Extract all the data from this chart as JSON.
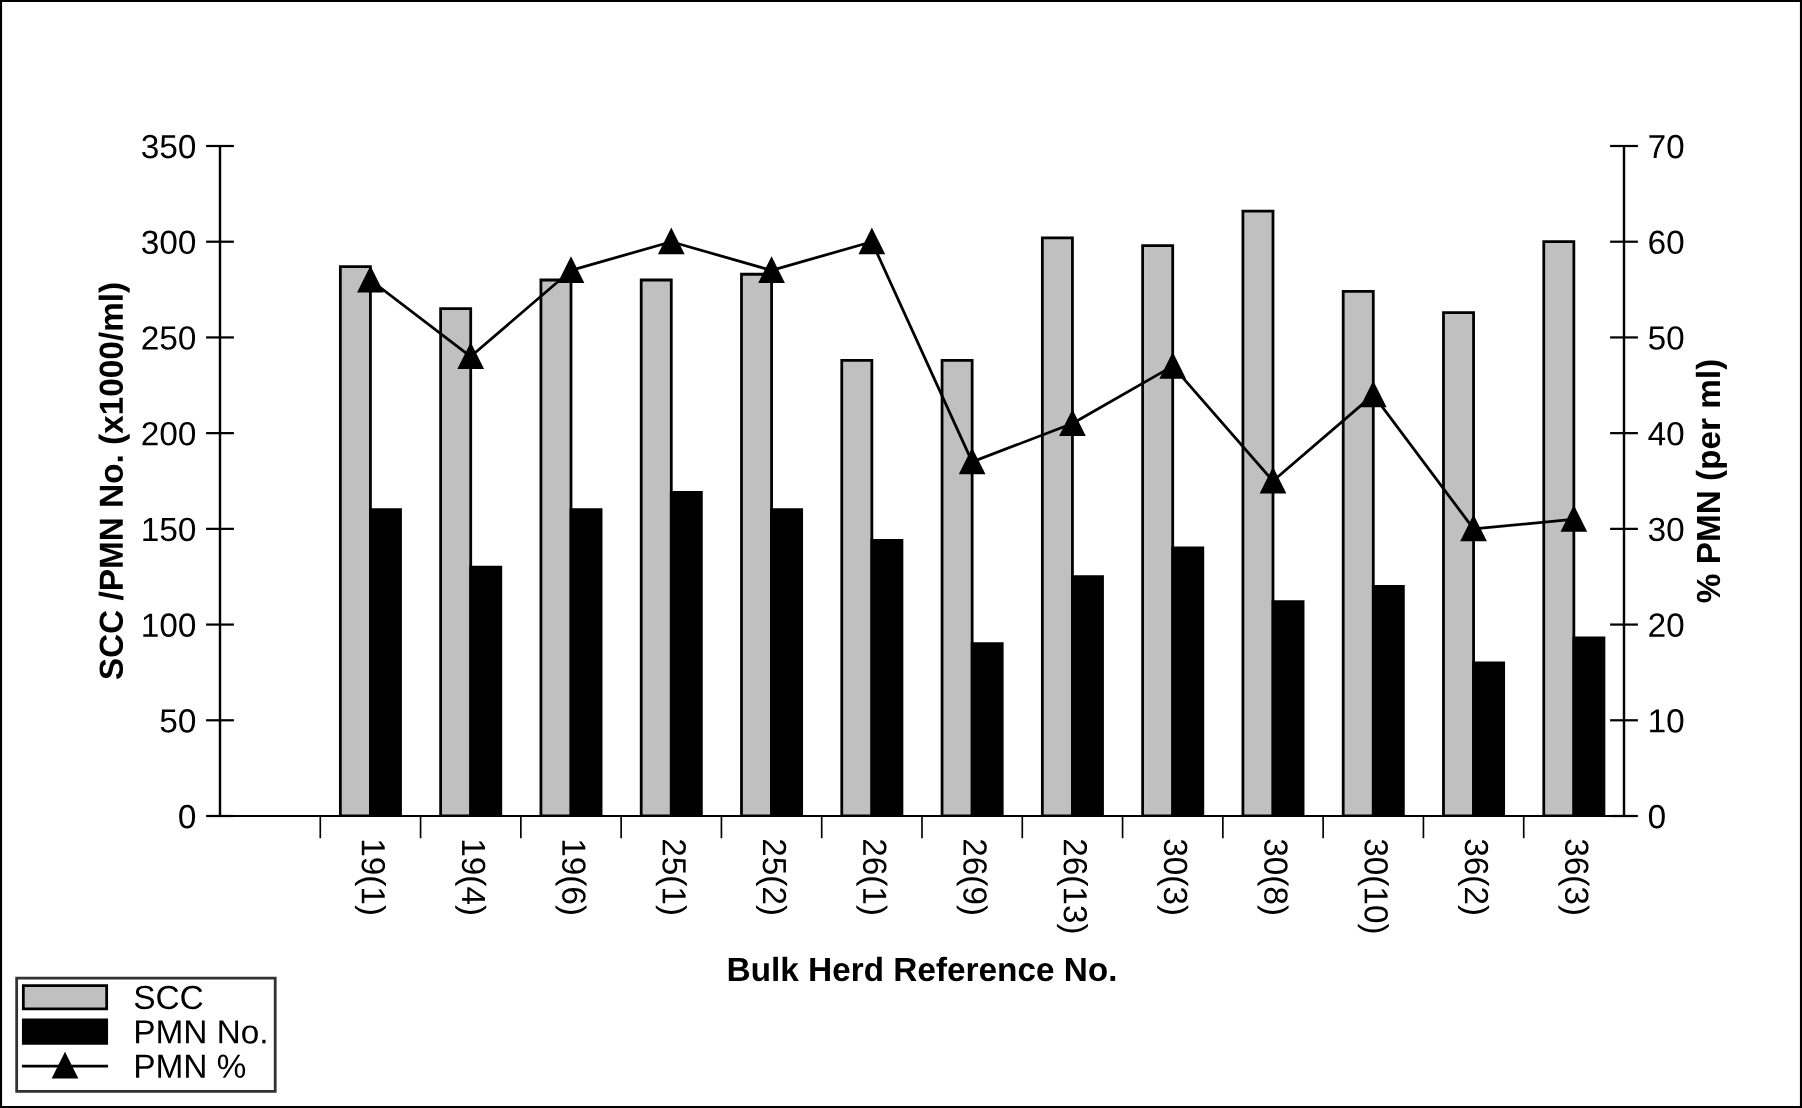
{
  "chart_data": {
    "type": "bar",
    "xlabel": "Bulk Herd Reference No.",
    "ylabel": "SCC /PMN No. (x1000/ml)",
    "y2label": "% PMN (per ml)",
    "categories": [
      null,
      "19(1)",
      "19(4)",
      "19(6)",
      "25(1)",
      "25(2)",
      "26(1)",
      "26(9)",
      "26(13)",
      "30(3)",
      "30(8)",
      "30(10)",
      "36(2)",
      "36(3)"
    ],
    "series": [
      {
        "name": "SCC",
        "color": "#c0c0c0",
        "values": [
          null,
          287,
          265,
          280,
          280,
          283,
          238,
          238,
          302,
          298,
          316,
          274,
          263,
          300
        ]
      },
      {
        "name": "PMN No.",
        "color": "#000000",
        "values": [
          null,
          160,
          130,
          160,
          169,
          160,
          144,
          90,
          125,
          140,
          112,
          120,
          80,
          93
        ]
      },
      {
        "name": "PMN %",
        "type": "line",
        "axis": "y2",
        "color": "#000000",
        "marker": "triangle",
        "values": [
          null,
          56,
          48,
          57,
          60,
          57,
          60,
          37,
          41,
          47,
          35,
          44,
          30,
          31
        ]
      }
    ],
    "ylim": [
      0,
      350
    ],
    "yticks": [
      0,
      50,
      100,
      150,
      200,
      250,
      300,
      350
    ],
    "y2lim": [
      0,
      70
    ],
    "y2ticks": [
      0,
      10,
      20,
      30,
      40,
      50,
      60,
      70
    ],
    "grid": false,
    "legend": "bottom left"
  }
}
